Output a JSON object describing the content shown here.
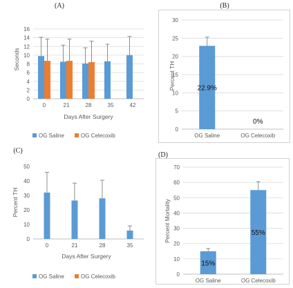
{
  "colors": {
    "saline": "#5B9BD5",
    "celecoxib": "#ED7D31",
    "grid": "#D9D9D9",
    "axis": "#BFBFBF",
    "error_bar": "#7F7F7F",
    "panel_border": "#D0D0D0"
  },
  "chart_data": [
    {
      "id": "A",
      "type": "bar",
      "panel_label": "(A)",
      "categories": [
        "0",
        "21",
        "28",
        "35",
        "42"
      ],
      "series": [
        {
          "name": "OG Saline",
          "color": "#5B9BD5",
          "values": [
            9.8,
            8.5,
            8.1,
            8.6,
            10.0
          ],
          "errors": [
            4.3,
            3.8,
            3.6,
            3.9,
            4.3
          ]
        },
        {
          "name": "OG Celecoxib",
          "color": "#ED7D31",
          "values": [
            8.7,
            8.7,
            8.4,
            null,
            null
          ],
          "errors": [
            5.0,
            5.0,
            4.8,
            null,
            null
          ]
        }
      ],
      "xlabel": "Days After Surgery",
      "ylabel": "Seconds",
      "ylim": [
        0,
        16
      ],
      "yticks": [
        0,
        2,
        4,
        6,
        8,
        10,
        12,
        14,
        16
      ],
      "grid": true,
      "legend": "bottom"
    },
    {
      "id": "B",
      "type": "bar",
      "panel_label": "(B)",
      "categories": [
        "OG Saline",
        "OG Celecoxib"
      ],
      "series": [
        {
          "color": "#5B9BD5",
          "values": [
            22.9,
            0
          ],
          "errors": [
            2.4,
            null
          ]
        }
      ],
      "data_labels": [
        "22.9%",
        "0%"
      ],
      "xlabel": "",
      "ylabel": "Percent TH",
      "ylim": [
        0,
        30
      ],
      "yticks": [
        0,
        5,
        10,
        15,
        20,
        25,
        30
      ],
      "grid": true,
      "legend": "none"
    },
    {
      "id": "C",
      "type": "bar",
      "panel_label": "(C)",
      "categories": [
        "0",
        "21",
        "28",
        "35"
      ],
      "series": [
        {
          "name": "OG Saline",
          "color": "#5B9BD5",
          "values": [
            32,
            26.5,
            28,
            5.8
          ],
          "errors": [
            14,
            12,
            12.5,
            3.2
          ]
        },
        {
          "name": "OG Celecoxib",
          "color": "#ED7D31",
          "values": [
            null,
            null,
            null,
            null
          ]
        }
      ],
      "xlabel": "Days After Surgery",
      "ylabel": "Percent TH",
      "ylim": [
        0,
        50
      ],
      "yticks": [
        0,
        10,
        20,
        30,
        40,
        50
      ],
      "grid": false,
      "legend": "bottom"
    },
    {
      "id": "D",
      "type": "bar",
      "panel_label": "(D)",
      "categories": [
        "OG Saline",
        "OG Celecoxib"
      ],
      "series": [
        {
          "color": "#5B9BD5",
          "values": [
            15,
            55
          ],
          "errors": [
            1.8,
            5.5
          ]
        }
      ],
      "data_labels": [
        "15%",
        "55%"
      ],
      "xlabel": "",
      "ylabel": "Percent Mortality",
      "ylim": [
        0,
        70
      ],
      "yticks": [
        0,
        10,
        20,
        30,
        40,
        50,
        60,
        70
      ],
      "grid": true,
      "legend": "none"
    }
  ]
}
